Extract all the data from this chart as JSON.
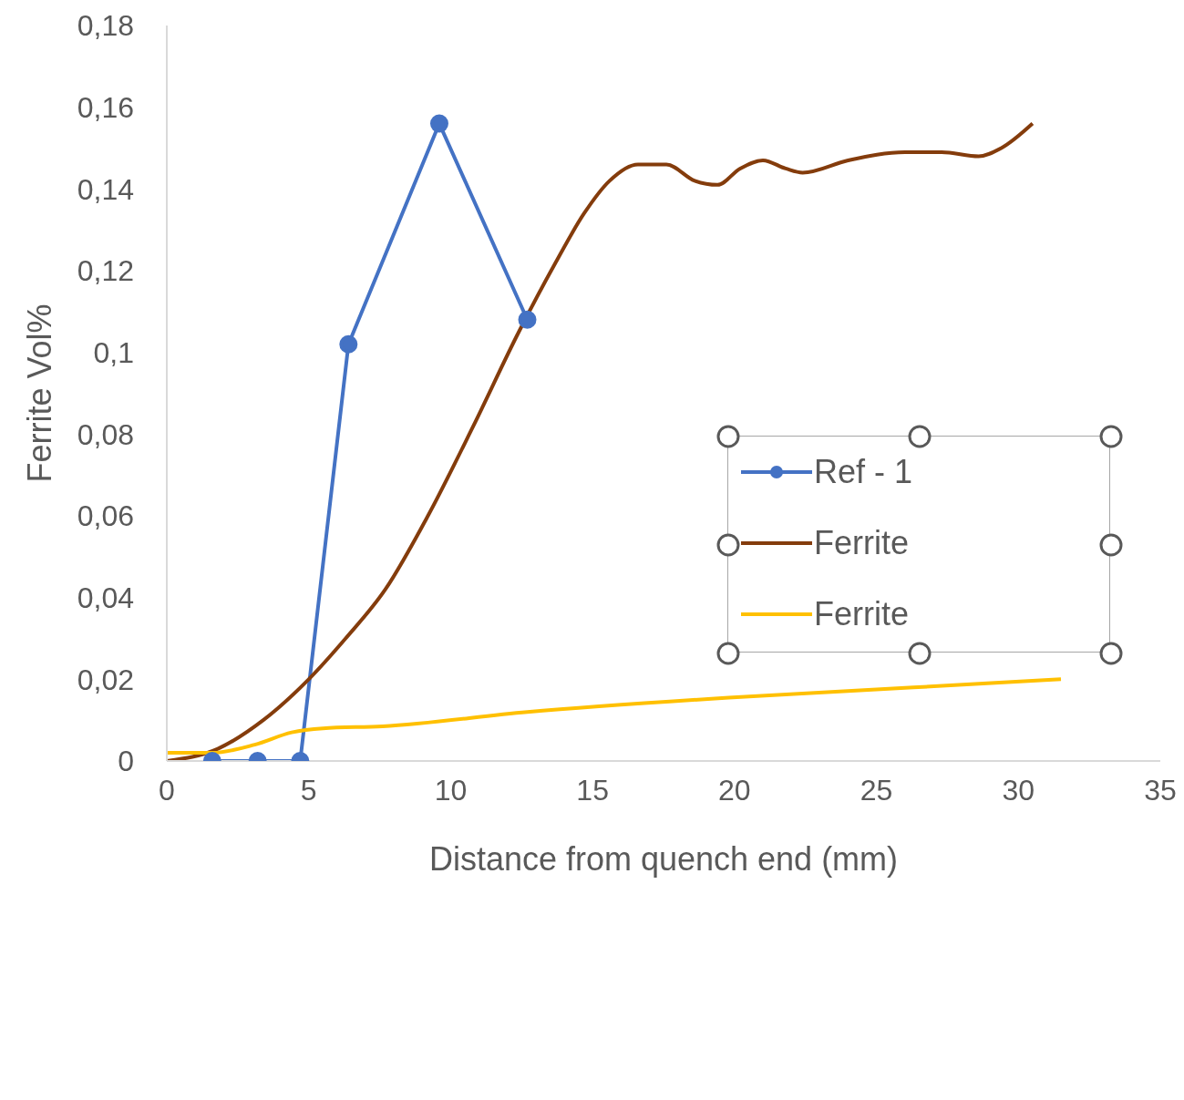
{
  "chart_data": {
    "type": "line",
    "xlabel": "Distance from quench end (mm)",
    "ylabel": "Ferrite Vol%",
    "xlim": [
      0,
      35
    ],
    "xticks": [
      0,
      5,
      10,
      15,
      20,
      25,
      30,
      35
    ],
    "ylim": [
      0,
      0.18
    ],
    "yticks": [
      {
        "value": 0,
        "label": "0"
      },
      {
        "value": 0.02,
        "label": "0,02"
      },
      {
        "value": 0.04,
        "label": "0,04"
      },
      {
        "value": 0.06,
        "label": "0,06"
      },
      {
        "value": 0.08,
        "label": "0,08"
      },
      {
        "value": 0.1,
        "label": "0,1"
      },
      {
        "value": 0.12,
        "label": "0,12"
      },
      {
        "value": 0.14,
        "label": "0,14"
      },
      {
        "value": 0.16,
        "label": "0,16"
      },
      {
        "value": 0.18,
        "label": "0,18"
      }
    ],
    "grid": false,
    "legend": "right",
    "series": [
      {
        "name": "Ref - 1",
        "color": "#4472c4",
        "marker": "circle",
        "x": [
          1.6,
          3.2,
          4.7,
          6.4,
          9.6,
          12.7
        ],
        "values": [
          0,
          0,
          0,
          0.102,
          0.156,
          0.108
        ]
      },
      {
        "name": "Ferrite",
        "color": "#843c0c",
        "marker": "none",
        "x": [
          0,
          1.8,
          3.4,
          5,
          6.3,
          7.7,
          9.2,
          10.8,
          12.4,
          13.7,
          14.7,
          15.6,
          16.6,
          17.6,
          18.6,
          19.4,
          20.2,
          21,
          21.8,
          22.4,
          24,
          26,
          27.3,
          28.6,
          29.4,
          30.5
        ],
        "values": [
          0,
          0.003,
          0.01,
          0.02,
          0.03,
          0.042,
          0.06,
          0.082,
          0.105,
          0.122,
          0.134,
          0.142,
          0.146,
          0.146,
          0.142,
          0.141,
          0.145,
          0.147,
          0.145,
          0.144,
          0.147,
          0.149,
          0.149,
          0.148,
          0.15,
          0.156
        ]
      },
      {
        "name": "Ferrite",
        "color": "#ffc000",
        "marker": "none",
        "x": [
          0,
          1.6,
          3.1,
          4.4,
          5.5,
          7.6,
          12.7,
          19.8,
          26.3,
          31.5
        ],
        "values": [
          0.002,
          0.002,
          0.004,
          0.007,
          0.008,
          0.0085,
          0.012,
          0.0155,
          0.018,
          0.02
        ]
      }
    ]
  }
}
